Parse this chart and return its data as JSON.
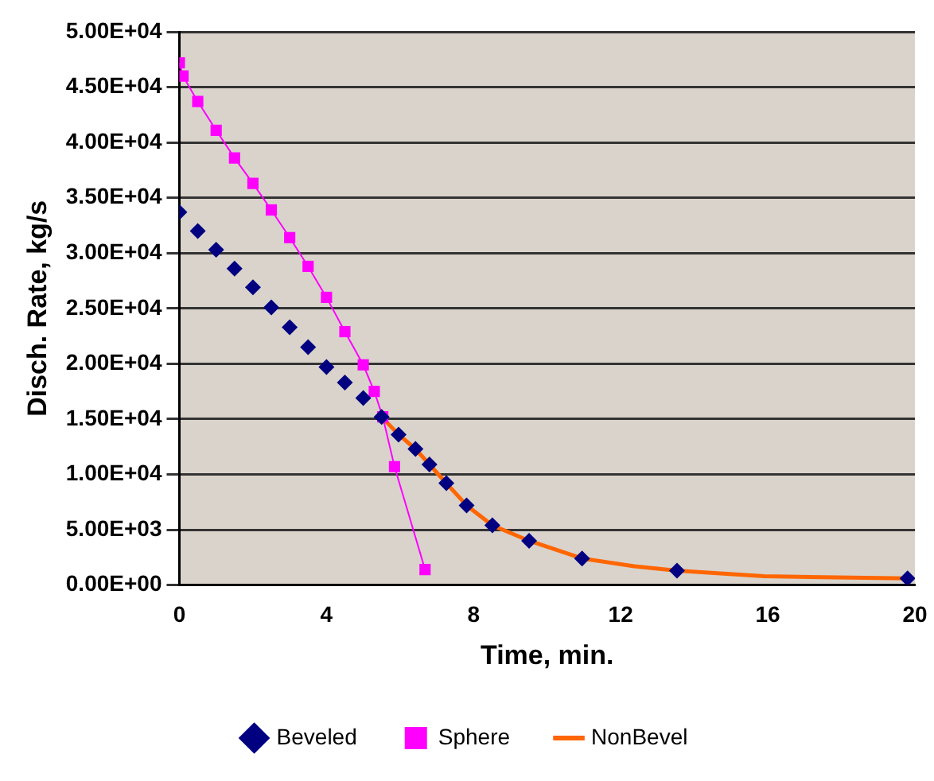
{
  "chart_data": {
    "type": "line",
    "xlabel": "Time, min.",
    "ylabel": "Disch. Rate, kg/s",
    "xlim": [
      0,
      20
    ],
    "xticks": [
      0,
      4,
      8,
      12,
      16,
      20
    ],
    "ylim": [
      0,
      50000
    ],
    "yticks": [
      {
        "value": 0,
        "label": "0.00E+00"
      },
      {
        "value": 5000,
        "label": "5.00E+03"
      },
      {
        "value": 10000,
        "label": "1.00E+04"
      },
      {
        "value": 15000,
        "label": "1.50E+04"
      },
      {
        "value": 20000,
        "label": "2.00E+04"
      },
      {
        "value": 25000,
        "label": "2.50E+04"
      },
      {
        "value": 30000,
        "label": "3.00E+04"
      },
      {
        "value": 35000,
        "label": "3.50E+04"
      },
      {
        "value": 40000,
        "label": "4.00E+04"
      },
      {
        "value": 45000,
        "label": "4.50E+04"
      },
      {
        "value": 50000,
        "label": "5.00E+04"
      }
    ],
    "grid": "y",
    "legend": "bottom",
    "series": [
      {
        "name": "Beveled",
        "type": "scatter",
        "marker": "diamond",
        "color": "#000080",
        "x": [
          0,
          0.5,
          1,
          1.5,
          2,
          2.5,
          3,
          3.5,
          4,
          4.5,
          5,
          5.5,
          5.96,
          6.42,
          6.8,
          7.26,
          7.81,
          8.51,
          9.51,
          10.95,
          13.53,
          19.8
        ],
        "values": [
          33700,
          32000,
          30300,
          28600,
          26900,
          25100,
          23300,
          21500,
          19700,
          18300,
          16900,
          15200,
          13600,
          12300,
          10900,
          9200,
          7200,
          5400,
          4000,
          2400,
          1300,
          600
        ]
      },
      {
        "name": "Sphere",
        "type": "line",
        "marker": "square",
        "color": "#ff00ff",
        "x": [
          0,
          0.1,
          0.5,
          1,
          1.5,
          2,
          2.5,
          3,
          3.5,
          4,
          4.5,
          5,
          5.3,
          5.53,
          5.85,
          6.68
        ],
        "values": [
          47200,
          46000,
          43700,
          41100,
          38600,
          36300,
          33900,
          31400,
          28800,
          26000,
          22900,
          19900,
          17500,
          15200,
          10700,
          1400
        ]
      },
      {
        "name": "NonBevel",
        "type": "line",
        "marker": "none",
        "color": "#ff6600",
        "x": [
          5.5,
          5.96,
          6.42,
          6.8,
          7.26,
          7.81,
          8.51,
          9.51,
          10.95,
          12.37,
          13.53,
          14.46,
          15.9,
          17.5,
          19.8
        ],
        "values": [
          15200,
          13600,
          12300,
          10900,
          9200,
          7200,
          5400,
          4000,
          2400,
          1700,
          1300,
          1100,
          800,
          700,
          600
        ]
      }
    ]
  }
}
